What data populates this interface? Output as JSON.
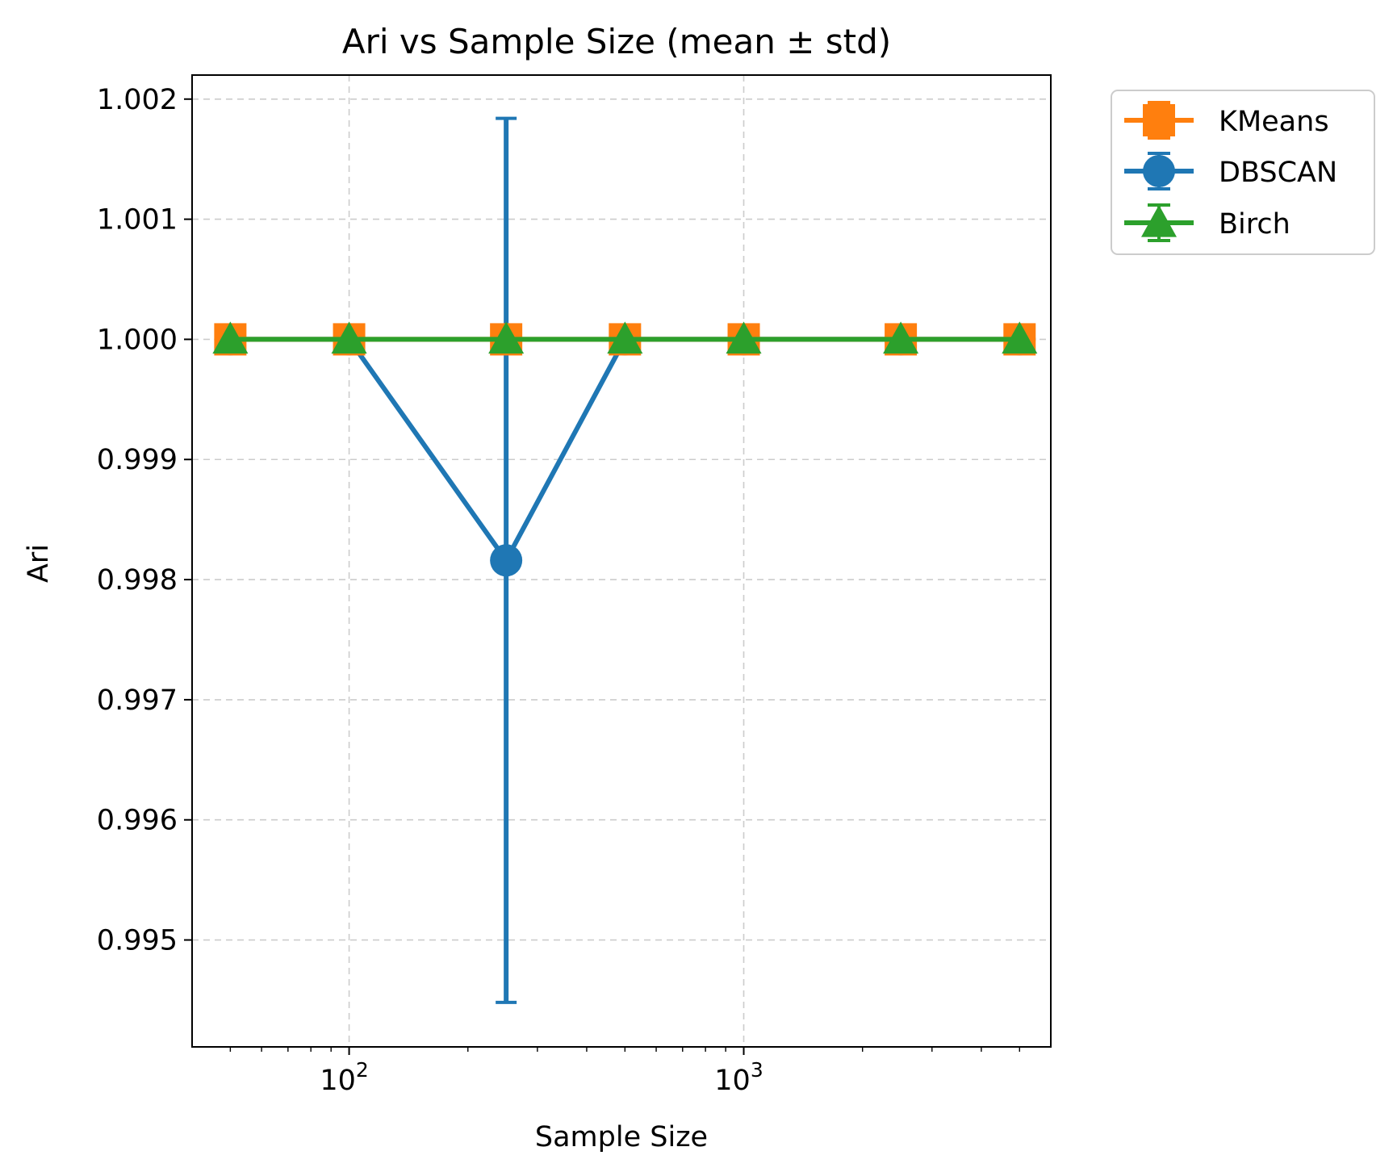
{
  "chart_data": {
    "type": "line",
    "title": "Ari vs Sample Size (mean ± std)",
    "xlabel": "Sample Size",
    "ylabel": "Ari",
    "x_scale": "log",
    "xlim": [
      40,
      6000
    ],
    "ylim": [
      0.99411,
      1.0022
    ],
    "x_ticks": [
      {
        "value": 100,
        "base": "10",
        "exp": "2"
      },
      {
        "value": 1000,
        "base": "10",
        "exp": "3"
      }
    ],
    "y_ticks": [
      {
        "value": 0.995,
        "label": "0.995"
      },
      {
        "value": 0.996,
        "label": "0.996"
      },
      {
        "value": 0.997,
        "label": "0.997"
      },
      {
        "value": 0.998,
        "label": "0.998"
      },
      {
        "value": 0.999,
        "label": "0.999"
      },
      {
        "value": 1.0,
        "label": "1.000"
      },
      {
        "value": 1.001,
        "label": "1.001"
      },
      {
        "value": 1.002,
        "label": "1.002"
      }
    ],
    "grid": true,
    "legend_position": "outside-top-right",
    "x": [
      50,
      100,
      250,
      500,
      1000,
      2500,
      5000
    ],
    "series": [
      {
        "name": "DBSCAN",
        "color": "#1f77b4",
        "marker": "circle",
        "values": [
          1.0,
          1.0,
          0.99816,
          1.0,
          1.0,
          1.0,
          1.0
        ],
        "errors": [
          0,
          0,
          0.00368,
          0,
          0,
          0,
          0
        ]
      },
      {
        "name": "KMeans",
        "color": "#ff7f0e",
        "marker": "square",
        "values": [
          1.0,
          1.0,
          1.0,
          1.0,
          1.0,
          1.0,
          1.0
        ],
        "errors": [
          0,
          0,
          0,
          0,
          0,
          0,
          0
        ]
      },
      {
        "name": "Birch",
        "color": "#2ca02c",
        "marker": "triangle",
        "values": [
          1.0,
          1.0,
          1.0,
          1.0,
          1.0,
          1.0,
          1.0
        ],
        "errors": [
          0,
          0,
          0,
          0,
          0,
          0,
          0
        ]
      }
    ],
    "legend_order": [
      "KMeans",
      "DBSCAN",
      "Birch"
    ]
  }
}
